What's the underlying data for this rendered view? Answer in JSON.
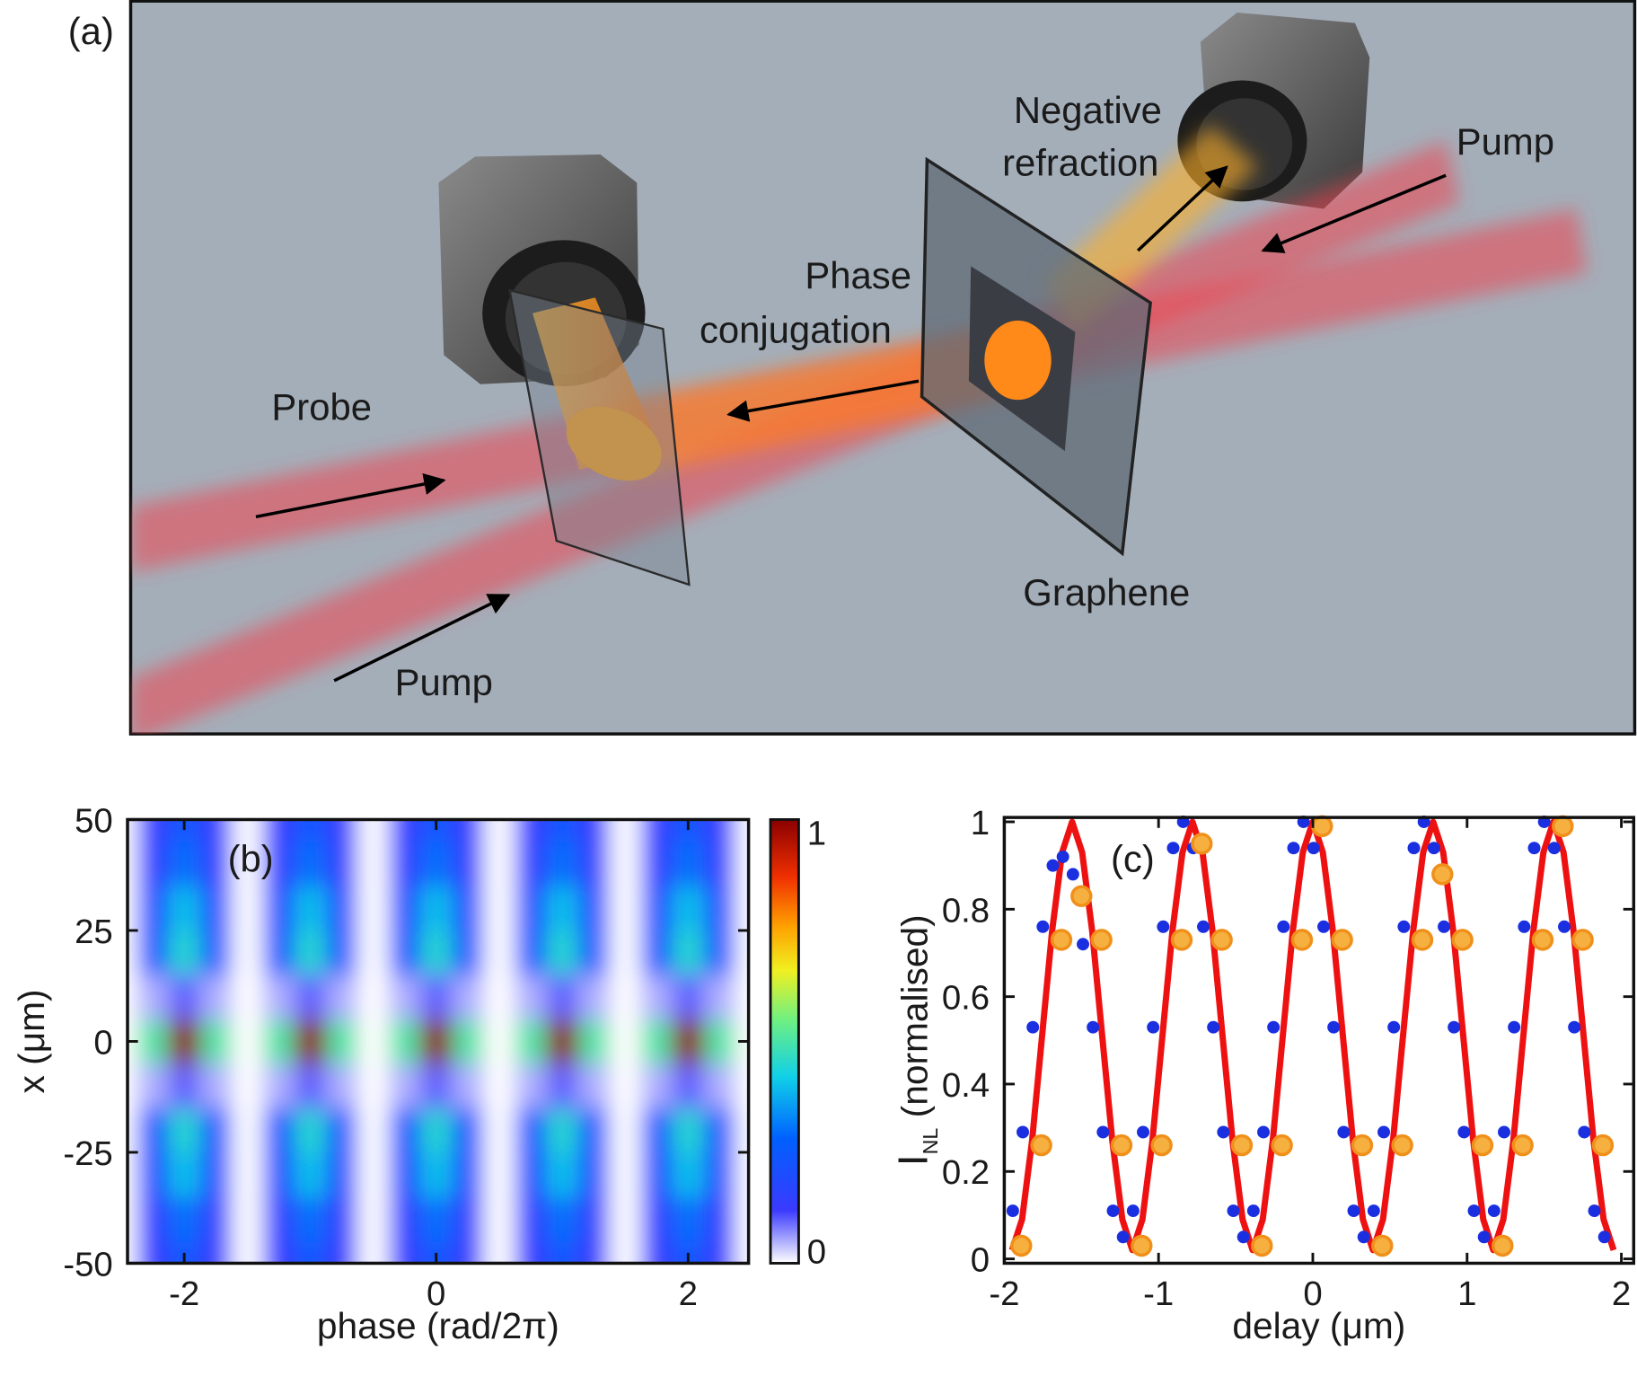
{
  "diagram": {
    "panel_label": "(a)",
    "labels": [
      "Negative",
      "refraction",
      "Pump",
      "Phase",
      "conjugation",
      "Probe",
      "Graphene",
      "Pump"
    ]
  },
  "chart_data": [
    {
      "type": "heatmap",
      "annotation": "(b)",
      "xlabel": "phase (rad/2π)",
      "ylabel": "x (μm)",
      "x": [
        -2.5,
        -2.25,
        -2,
        -1.75,
        -1.5,
        -1.25,
        -1,
        -0.75,
        -0.5,
        -0.25,
        0,
        0.25,
        0.5,
        0.75,
        1,
        1.25,
        1.5,
        1.75,
        2,
        2.25,
        2.5
      ],
      "y": [
        -50,
        -40,
        -30,
        -20,
        -10,
        0,
        10,
        20,
        30,
        40,
        50
      ],
      "values": [
        [
          0,
          0.13,
          0.25,
          0.13,
          0,
          0.13,
          0.25,
          0.13,
          0,
          0.13,
          0.25,
          0.13,
          0,
          0.13,
          0.25,
          0.13,
          0,
          0.13,
          0.25,
          0.13,
          0
        ],
        [
          0,
          0.15,
          0.3,
          0.15,
          0,
          0.15,
          0.3,
          0.15,
          0,
          0.15,
          0.3,
          0.15,
          0,
          0.15,
          0.3,
          0.15,
          0,
          0.15,
          0.3,
          0.15,
          0
        ],
        [
          0,
          0.2,
          0.4,
          0.2,
          0,
          0.2,
          0.4,
          0.2,
          0,
          0.2,
          0.4,
          0.2,
          0,
          0.2,
          0.4,
          0.2,
          0,
          0.2,
          0.4,
          0.2,
          0
        ],
        [
          0,
          0.23,
          0.45,
          0.23,
          0,
          0.23,
          0.45,
          0.23,
          0,
          0.23,
          0.45,
          0.23,
          0,
          0.23,
          0.45,
          0.23,
          0,
          0.23,
          0.45,
          0.23,
          0
        ],
        [
          0,
          0.05,
          0.1,
          0.05,
          0,
          0.05,
          0.1,
          0.05,
          0,
          0.05,
          0.1,
          0.05,
          0,
          0.05,
          0.1,
          0.05,
          0,
          0.05,
          0.1,
          0.05,
          0
        ],
        [
          0,
          0.5,
          1,
          0.5,
          0,
          0.5,
          1,
          0.5,
          0,
          0.5,
          1,
          0.5,
          0,
          0.5,
          1,
          0.5,
          0,
          0.5,
          1,
          0.5,
          0
        ],
        [
          0,
          0.05,
          0.1,
          0.05,
          0,
          0.05,
          0.1,
          0.05,
          0,
          0.05,
          0.1,
          0.05,
          0,
          0.05,
          0.1,
          0.05,
          0,
          0.05,
          0.1,
          0.05,
          0
        ],
        [
          0,
          0.23,
          0.45,
          0.23,
          0,
          0.23,
          0.45,
          0.23,
          0,
          0.23,
          0.45,
          0.23,
          0,
          0.23,
          0.45,
          0.23,
          0,
          0.23,
          0.45,
          0.23,
          0
        ],
        [
          0,
          0.2,
          0.4,
          0.2,
          0,
          0.2,
          0.4,
          0.2,
          0,
          0.2,
          0.4,
          0.2,
          0,
          0.2,
          0.4,
          0.2,
          0,
          0.2,
          0.4,
          0.2,
          0
        ],
        [
          0,
          0.15,
          0.3,
          0.15,
          0,
          0.15,
          0.3,
          0.15,
          0,
          0.15,
          0.3,
          0.15,
          0,
          0.15,
          0.3,
          0.15,
          0,
          0.15,
          0.3,
          0.15,
          0
        ],
        [
          0,
          0.13,
          0.25,
          0.13,
          0,
          0.13,
          0.25,
          0.13,
          0,
          0.13,
          0.25,
          0.13,
          0,
          0.13,
          0.25,
          0.13,
          0,
          0.13,
          0.25,
          0.13,
          0
        ]
      ],
      "xlim": [
        -2.45,
        2.48
      ],
      "xticks": [
        -2,
        0,
        2
      ],
      "ylim": [
        -50,
        50
      ],
      "yticks": [
        -50,
        -25,
        0,
        25,
        50
      ],
      "colorbar": {
        "lim": [
          0,
          1
        ],
        "ticks": [
          0,
          1
        ]
      }
    },
    {
      "type": "line",
      "annotation": "(c)",
      "xlabel": "delay (μm)",
      "ylabel": {
        "main": "I",
        "sub": "NL",
        "rest": " (normalised)"
      },
      "xlim": [
        -2,
        2.08
      ],
      "xticks": [
        -2,
        -1,
        0,
        1,
        2
      ],
      "ylim": [
        -0.01,
        1.01
      ],
      "yticks": [
        0,
        0.2,
        0.4,
        0.6,
        0.8,
        1
      ],
      "series": [
        {
          "mark": "line",
          "color": "#ee1111",
          "x": [
            -1.95,
            -1.885,
            -1.82,
            -1.755,
            -1.69,
            -1.625,
            -1.56,
            -1.495,
            -1.43,
            -1.365,
            -1.3,
            -1.235,
            -1.17,
            -1.105,
            -1.04,
            -0.975,
            -0.91,
            -0.845,
            -0.78,
            -0.715,
            -0.65,
            -0.585,
            -0.52,
            -0.455,
            -0.39,
            -0.325,
            -0.26,
            -0.195,
            -0.13,
            -0.065,
            0,
            0.065,
            0.13,
            0.195,
            0.26,
            0.325,
            0.39,
            0.455,
            0.52,
            0.585,
            0.65,
            0.715,
            0.78,
            0.845,
            0.91,
            0.975,
            1.04,
            1.105,
            1.17,
            1.235,
            1.3,
            1.365,
            1.43,
            1.495,
            1.56,
            1.625,
            1.69,
            1.755,
            1.82,
            1.885,
            1.95
          ],
          "values": [
            0.02,
            0.09,
            0.27,
            0.51,
            0.75,
            0.93,
            1,
            0.93,
            0.75,
            0.51,
            0.27,
            0.09,
            0.02,
            0.09,
            0.27,
            0.51,
            0.75,
            0.93,
            1,
            0.93,
            0.75,
            0.51,
            0.27,
            0.09,
            0.02,
            0.09,
            0.27,
            0.51,
            0.75,
            0.93,
            1,
            0.93,
            0.75,
            0.51,
            0.27,
            0.09,
            0.02,
            0.09,
            0.27,
            0.51,
            0.75,
            0.93,
            1,
            0.93,
            0.75,
            0.51,
            0.27,
            0.09,
            0.02,
            0.09,
            0.27,
            0.51,
            0.75,
            0.93,
            1,
            0.93,
            0.75,
            0.51,
            0.27,
            0.09,
            0.02
          ]
        },
        {
          "mark": "scatter",
          "color": "#1a2fe0",
          "x": [
            -1.945,
            -1.88,
            -1.815,
            -1.75,
            -1.685,
            -1.62,
            -1.555,
            -1.49,
            -1.425,
            -1.36,
            -1.295,
            -1.23,
            -1.165,
            -1.1,
            -1.035,
            -0.97,
            -0.905,
            -0.84,
            -0.775,
            -0.71,
            -0.645,
            -0.58,
            -0.515,
            -0.45,
            -0.385,
            -0.32,
            -0.255,
            -0.19,
            -0.125,
            -0.06,
            0.005,
            0.07,
            0.135,
            0.2,
            0.265,
            0.33,
            0.395,
            0.46,
            0.525,
            0.59,
            0.655,
            0.72,
            0.785,
            0.85,
            0.915,
            0.98,
            1.045,
            1.11,
            1.175,
            1.24,
            1.305,
            1.37,
            1.435,
            1.5,
            1.565,
            1.63,
            1.695,
            1.76,
            1.825,
            1.89
          ],
          "values": [
            0.11,
            0.29,
            0.53,
            0.76,
            0.9,
            0.92,
            0.88,
            0.72,
            0.53,
            0.29,
            0.11,
            0.05,
            0.11,
            0.29,
            0.53,
            0.76,
            0.94,
            1,
            0.94,
            0.76,
            0.53,
            0.29,
            0.11,
            0.05,
            0.11,
            0.29,
            0.53,
            0.76,
            0.94,
            1,
            0.94,
            0.76,
            0.53,
            0.29,
            0.11,
            0.05,
            0.11,
            0.29,
            0.53,
            0.76,
            0.94,
            1,
            0.94,
            0.76,
            0.53,
            0.29,
            0.11,
            0.05,
            0.11,
            0.29,
            0.53,
            0.76,
            0.94,
            1,
            0.94,
            0.76,
            0.53,
            0.29,
            0.11,
            0.05
          ]
        },
        {
          "mark": "scatter",
          "color": "#f5b040",
          "x": [
            -1.89,
            -1.76,
            -1.63,
            -1.5,
            -1.37,
            -1.24,
            -1.11,
            -0.98,
            -0.85,
            -0.72,
            -0.59,
            -0.46,
            -0.33,
            -0.2,
            -0.07,
            0.06,
            0.19,
            0.32,
            0.45,
            0.58,
            0.71,
            0.84,
            0.97,
            1.1,
            1.23,
            1.36,
            1.49,
            1.62,
            1.75,
            1.88
          ],
          "values": [
            0.03,
            0.26,
            0.73,
            0.83,
            0.73,
            0.26,
            0.03,
            0.26,
            0.73,
            0.95,
            0.73,
            0.26,
            0.03,
            0.26,
            0.73,
            0.99,
            0.73,
            0.26,
            0.03,
            0.26,
            0.73,
            0.88,
            0.73,
            0.26,
            0.03,
            0.26,
            0.73,
            0.99,
            0.73,
            0.26
          ]
        }
      ]
    }
  ]
}
